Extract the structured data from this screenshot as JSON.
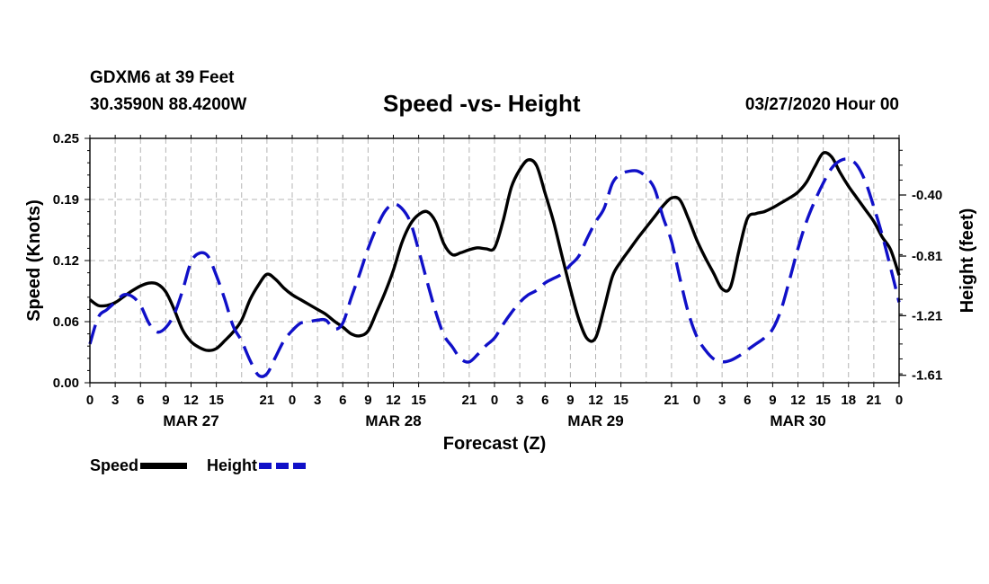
{
  "header": {
    "station": "GDXM6 at 39 Feet",
    "coords": "30.3590N 88.4200W",
    "title": "Speed -vs- Height",
    "date": "03/27/2020 Hour 00"
  },
  "legend": {
    "speed_label": "Speed",
    "height_label": "Height"
  },
  "colors": {
    "speed": "#000000",
    "height": "#1010c8",
    "grid": "#b4b4b4"
  },
  "chart_data": {
    "type": "line",
    "title": "Speed -vs- Height",
    "xlabel": "Forecast (Z)",
    "ylabel": "Speed (Knots)",
    "y2label": "Height (feet)",
    "x_range_hours": [
      0,
      96
    ],
    "x_ticks": [
      "0",
      "3",
      "6",
      "9",
      "12",
      "15",
      "21",
      "0",
      "3",
      "6",
      "9",
      "12",
      "15",
      "21",
      "0",
      "3",
      "6",
      "9",
      "12",
      "15",
      "21",
      "0",
      "3",
      "6",
      "9",
      "12",
      "15",
      "18",
      "21",
      "0"
    ],
    "x_tick_hours": [
      0,
      3,
      6,
      9,
      12,
      15,
      21,
      24,
      27,
      30,
      33,
      36,
      39,
      45,
      48,
      51,
      54,
      57,
      60,
      63,
      69,
      72,
      75,
      78,
      81,
      84,
      87,
      90,
      93,
      96
    ],
    "x_dates": [
      {
        "label": "MAR 27",
        "hour": 12
      },
      {
        "label": "MAR 28",
        "hour": 36
      },
      {
        "label": "MAR 29",
        "hour": 60
      },
      {
        "label": "MAR 30",
        "hour": 84
      }
    ],
    "y_left": {
      "ticks": [
        "0.00",
        "0.06",
        "0.12",
        "0.19",
        "0.25"
      ],
      "values": [
        0,
        0.0625,
        0.125,
        0.1875,
        0.25
      ],
      "range": [
        0,
        0.25
      ]
    },
    "y_right": {
      "ticks": [
        "-0.40",
        "-0.81",
        "-1.21",
        "-1.61"
      ],
      "values": [
        -0.4,
        -0.81,
        -1.21,
        -1.61
      ],
      "range": [
        -1.66,
        -0.02
      ]
    },
    "grid": true,
    "series": [
      {
        "name": "Speed",
        "axis": "left",
        "style": "solid",
        "x": [
          0,
          1,
          2,
          3,
          4,
          5,
          6,
          7,
          8,
          9,
          10,
          11,
          12,
          13,
          14,
          15,
          16,
          17,
          18,
          19,
          20,
          21,
          22,
          23,
          24,
          25,
          26,
          27,
          28,
          29,
          30,
          31,
          32,
          33,
          34,
          35,
          36,
          37,
          38,
          39,
          40,
          41,
          42,
          43,
          44,
          45,
          46,
          47,
          48,
          49,
          50,
          51,
          52,
          53,
          54,
          55,
          56,
          57,
          58,
          59,
          60,
          61,
          62,
          63,
          64,
          65,
          66,
          67,
          68,
          69,
          70,
          71,
          72,
          73,
          74,
          75,
          76,
          77,
          78,
          79,
          80,
          81,
          82,
          83,
          84,
          85,
          86,
          87,
          88,
          89,
          90,
          91,
          92,
          93,
          94,
          95,
          96
        ],
        "values": [
          0.085,
          0.079,
          0.079,
          0.082,
          0.088,
          0.094,
          0.099,
          0.102,
          0.101,
          0.093,
          0.075,
          0.054,
          0.042,
          0.036,
          0.033,
          0.035,
          0.043,
          0.052,
          0.064,
          0.085,
          0.1,
          0.111,
          0.106,
          0.097,
          0.09,
          0.085,
          0.08,
          0.075,
          0.07,
          0.063,
          0.057,
          0.05,
          0.048,
          0.053,
          0.072,
          0.092,
          0.115,
          0.143,
          0.162,
          0.172,
          0.175,
          0.165,
          0.142,
          0.131,
          0.133,
          0.136,
          0.138,
          0.137,
          0.138,
          0.165,
          0.2,
          0.218,
          0.228,
          0.222,
          0.194,
          0.165,
          0.13,
          0.096,
          0.065,
          0.045,
          0.046,
          0.076,
          0.109,
          0.124,
          0.136,
          0.148,
          0.159,
          0.17,
          0.181,
          0.189,
          0.187,
          0.168,
          0.146,
          0.128,
          0.112,
          0.096,
          0.098,
          0.135,
          0.168,
          0.173,
          0.175,
          0.179,
          0.184,
          0.189,
          0.195,
          0.205,
          0.221,
          0.235,
          0.231,
          0.215,
          0.201,
          0.189,
          0.177,
          0.165,
          0.149,
          0.136,
          0.11
        ]
      },
      {
        "name": "Height",
        "axis": "right",
        "style": "dashed",
        "x": [
          0,
          1,
          2,
          3,
          4,
          5,
          6,
          7,
          8,
          9,
          10,
          11,
          12,
          13,
          14,
          15,
          16,
          17,
          18,
          19,
          20,
          21,
          22,
          23,
          24,
          25,
          26,
          27,
          28,
          29,
          30,
          31,
          32,
          33,
          34,
          35,
          36,
          37,
          38,
          39,
          40,
          41,
          42,
          43,
          44,
          45,
          46,
          47,
          48,
          49,
          50,
          51,
          52,
          53,
          54,
          55,
          56,
          57,
          58,
          59,
          60,
          61,
          62,
          63,
          64,
          65,
          66,
          67,
          68,
          69,
          70,
          71,
          72,
          73,
          74,
          75,
          76,
          77,
          78,
          79,
          80,
          81,
          82,
          83,
          84,
          85,
          86,
          87,
          88,
          89,
          90,
          91,
          92,
          93,
          94,
          95,
          96
        ],
        "values": [
          -1.4,
          -1.22,
          -1.17,
          -1.12,
          -1.07,
          -1.08,
          -1.14,
          -1.26,
          -1.32,
          -1.29,
          -1.2,
          -1.04,
          -0.85,
          -0.79,
          -0.81,
          -0.94,
          -1.1,
          -1.28,
          -1.38,
          -1.51,
          -1.61,
          -1.6,
          -1.49,
          -1.38,
          -1.31,
          -1.26,
          -1.25,
          -1.24,
          -1.24,
          -1.3,
          -1.26,
          -1.09,
          -0.93,
          -0.76,
          -0.62,
          -0.51,
          -0.46,
          -0.49,
          -0.58,
          -0.77,
          -0.98,
          -1.18,
          -1.34,
          -1.42,
          -1.5,
          -1.52,
          -1.47,
          -1.41,
          -1.36,
          -1.27,
          -1.19,
          -1.12,
          -1.07,
          -1.04,
          -0.99,
          -0.96,
          -0.93,
          -0.87,
          -0.81,
          -0.69,
          -0.58,
          -0.49,
          -0.32,
          -0.26,
          -0.24,
          -0.24,
          -0.28,
          -0.36,
          -0.55,
          -0.71,
          -0.96,
          -1.19,
          -1.35,
          -1.44,
          -1.5,
          -1.52,
          -1.51,
          -1.48,
          -1.44,
          -1.4,
          -1.36,
          -1.3,
          -1.17,
          -0.97,
          -0.76,
          -0.58,
          -0.44,
          -0.32,
          -0.22,
          -0.17,
          -0.16,
          -0.2,
          -0.31,
          -0.48,
          -0.67,
          -0.89,
          -1.12
        ]
      }
    ]
  }
}
